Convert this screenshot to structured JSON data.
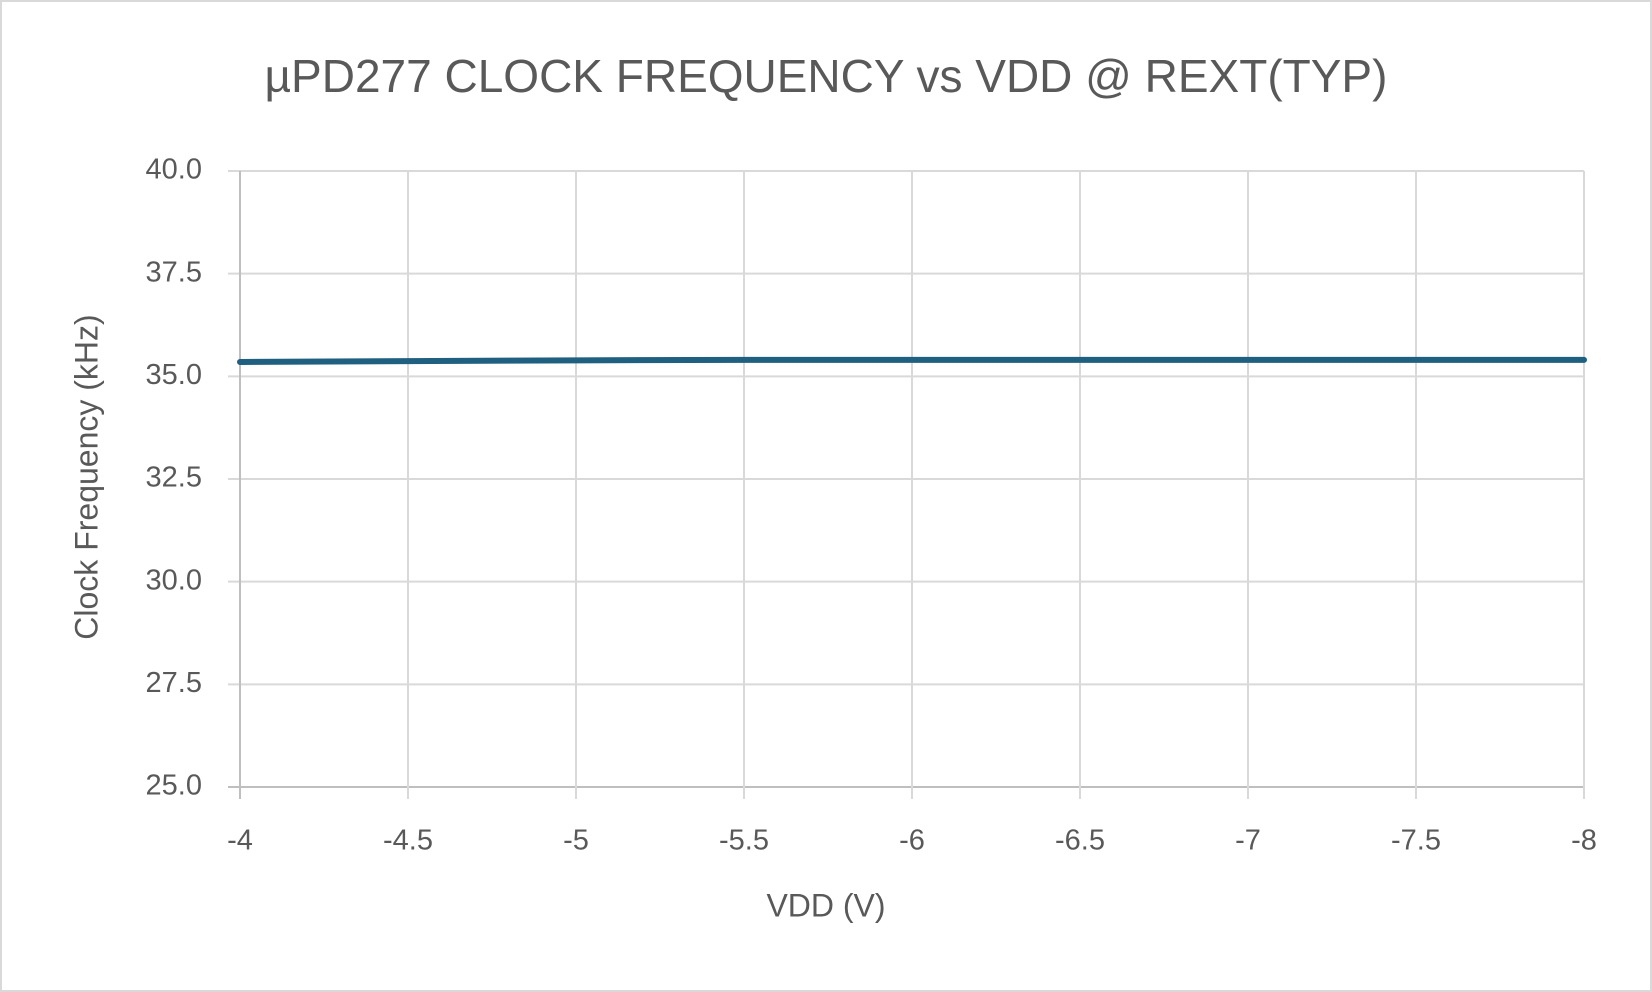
{
  "chart_data": {
    "type": "line",
    "title": "µPD277 CLOCK FREQUENCY vs VDD @ REXT(TYP)",
    "x_label": "VDD (V)",
    "y_label": "Clock Frequency (kHz)",
    "x": [
      -4,
      -4.5,
      -5,
      -5.5,
      -6,
      -6.5,
      -7,
      -7.5,
      -8
    ],
    "values": [
      35.35,
      35.37,
      35.39,
      35.4,
      35.4,
      35.4,
      35.4,
      35.4,
      35.4
    ],
    "color": "#1f5f80",
    "xlim": [
      -4,
      -8
    ],
    "xticks": [
      -4,
      -4.5,
      -5,
      -5.5,
      -6,
      -6.5,
      -7,
      -7.5,
      -8
    ],
    "ylim": [
      25,
      40
    ],
    "yticks": [
      {
        "value": 25,
        "label": "25.0"
      },
      27.5,
      {
        "value": 30,
        "label": "30.0"
      },
      32.5,
      {
        "value": 35,
        "label": "35.0"
      },
      37.5,
      {
        "value": 40,
        "label": "40.0"
      }
    ],
    "grid": true
  }
}
